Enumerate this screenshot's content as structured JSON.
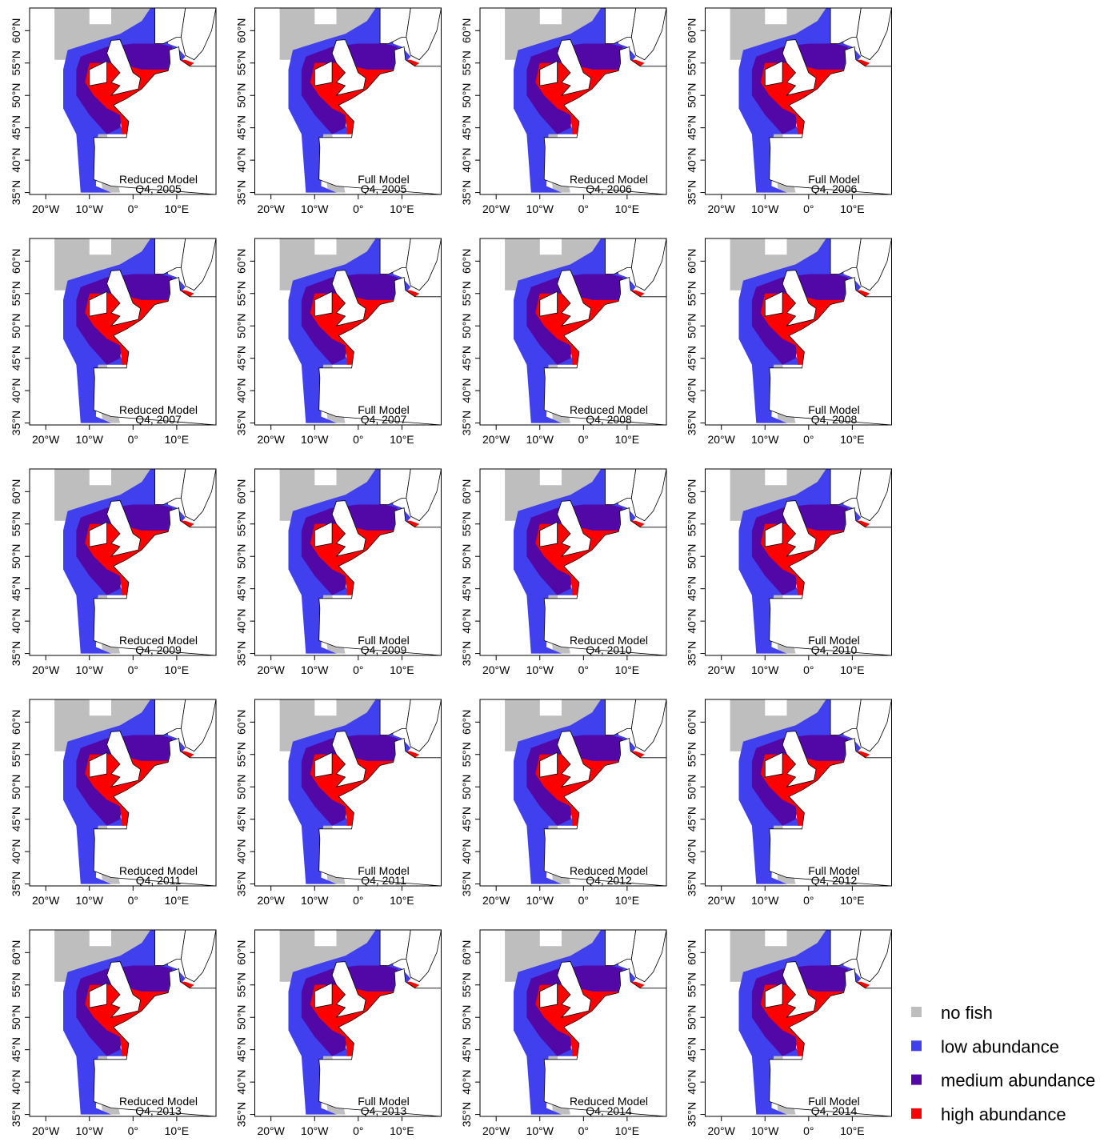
{
  "axes": {
    "xlim": [
      -23.7,
      19
    ],
    "ylim": [
      34.7,
      63.5
    ],
    "xticks": [
      {
        "value": -20,
        "label": "20°W"
      },
      {
        "value": -10,
        "label": "10°W"
      },
      {
        "value": 0,
        "label": "0°"
      },
      {
        "value": 10,
        "label": "10°E"
      }
    ],
    "yticks": [
      {
        "value": 35,
        "label": "35°N"
      },
      {
        "value": 40,
        "label": "40°N"
      },
      {
        "value": 45,
        "label": "45°N"
      },
      {
        "value": 50,
        "label": "50°N"
      },
      {
        "value": 55,
        "label": "55°N"
      },
      {
        "value": 60,
        "label": "60°N"
      }
    ]
  },
  "panels": [
    {
      "model": "Reduced Model",
      "period": "Q4, 2005"
    },
    {
      "model": "Full Model",
      "period": "Q4, 2005"
    },
    {
      "model": "Reduced Model",
      "period": "Q4, 2006"
    },
    {
      "model": "Full Model",
      "period": "Q4, 2006"
    },
    {
      "model": "Reduced Model",
      "period": "Q4, 2007"
    },
    {
      "model": "Full Model",
      "period": "Q4, 2007"
    },
    {
      "model": "Reduced Model",
      "period": "Q4, 2008"
    },
    {
      "model": "Full Model",
      "period": "Q4, 2008"
    },
    {
      "model": "Reduced Model",
      "period": "Q4, 2009"
    },
    {
      "model": "Full Model",
      "period": "Q4, 2009"
    },
    {
      "model": "Reduced Model",
      "period": "Q4, 2010"
    },
    {
      "model": "Full Model",
      "period": "Q4, 2010"
    },
    {
      "model": "Reduced Model",
      "period": "Q4, 2011"
    },
    {
      "model": "Full Model",
      "period": "Q4, 2011"
    },
    {
      "model": "Reduced Model",
      "period": "Q4, 2012"
    },
    {
      "model": "Full Model",
      "period": "Q4, 2012"
    },
    {
      "model": "Reduced Model",
      "period": "Q4, 2013"
    },
    {
      "model": "Full Model",
      "period": "Q4, 2013"
    },
    {
      "model": "Reduced Model",
      "period": "Q4, 2014"
    },
    {
      "model": "Full Model",
      "period": "Q4, 2014"
    }
  ],
  "legend": [
    {
      "label": "no fish",
      "color": "#bebebe"
    },
    {
      "label": "low abundance",
      "color": "#4040ee"
    },
    {
      "label": "medium abundance",
      "color": "#5208a6"
    },
    {
      "label": "high abundance",
      "color": "#ff0000"
    }
  ]
}
